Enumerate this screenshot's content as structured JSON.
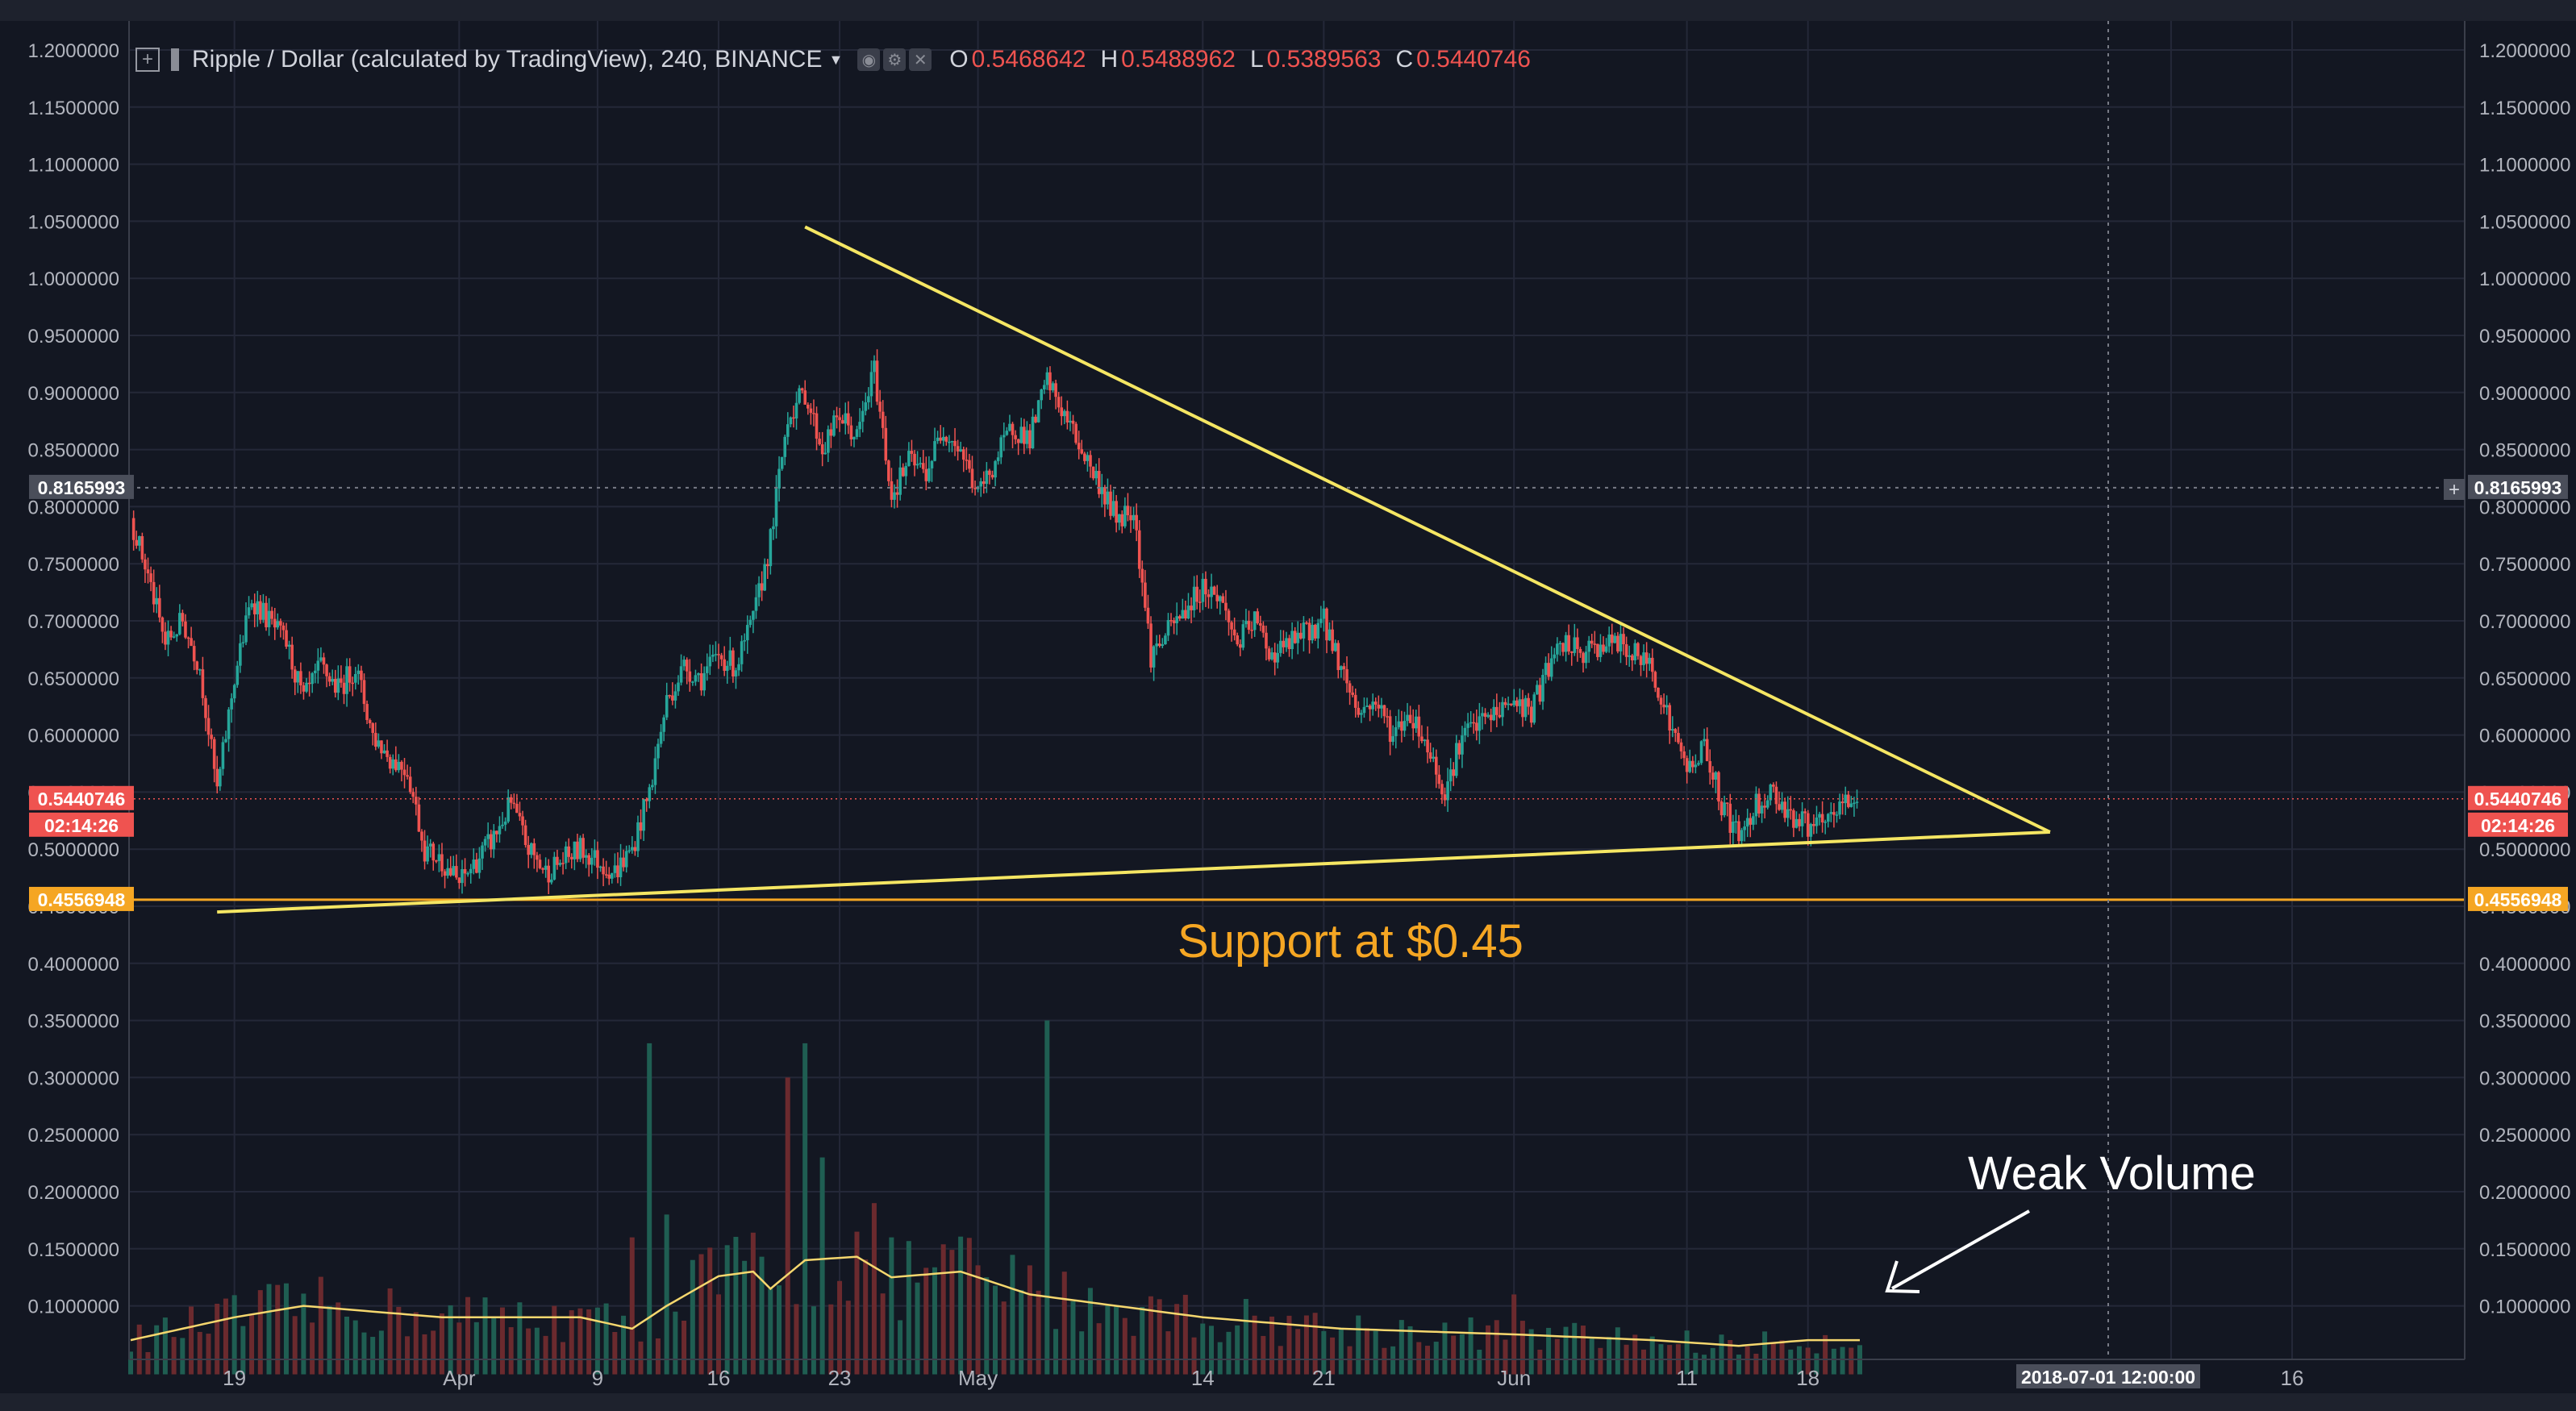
{
  "legend": {
    "title": "Ripple / Dollar (calculated by TradingView), 240, BINANCE",
    "o_label": "O",
    "o_value": "0.5468642",
    "h_label": "H",
    "h_value": "0.5488962",
    "l_label": "L",
    "l_value": "0.5389563",
    "c_label": "C",
    "c_value": "0.5440746"
  },
  "annotations": {
    "support": "Support at $0.45",
    "weak_volume": "Weak Volume"
  },
  "colors": {
    "background": "#131722",
    "grid": "#242838",
    "up": "#26a69a",
    "down": "#ef5350",
    "trendline": "#f5e663",
    "support": "#f5a623",
    "volume_ma": "#f5d76e"
  },
  "chart_data": {
    "type": "candlestick",
    "symbol": "Ripple / Dollar (calculated by TradingView), 240, BINANCE",
    "y_range": [
      0.04,
      1.22
    ],
    "y_ticks": [
      "1.2000000",
      "1.1500000",
      "1.1000000",
      "1.0500000",
      "1.0000000",
      "0.9500000",
      "0.9000000",
      "0.8500000",
      "0.8000000",
      "0.7500000",
      "0.7000000",
      "0.6500000",
      "0.6000000",
      "0.5500000",
      "0.5000000",
      "0.4500000",
      "0.4000000",
      "0.3500000",
      "0.3000000",
      "0.2500000",
      "0.2000000",
      "0.1500000",
      "0.1000000"
    ],
    "y_tick_values": [
      1.2,
      1.15,
      1.1,
      1.05,
      1.0,
      0.95,
      0.9,
      0.85,
      0.8,
      0.75,
      0.7,
      0.65,
      0.6,
      0.55,
      0.5,
      0.45,
      0.4,
      0.35,
      0.3,
      0.25,
      0.2,
      0.15,
      0.1
    ],
    "x_range_days": [
      0,
      112
    ],
    "x_ticks": [
      {
        "label": "19",
        "day": 6
      },
      {
        "label": "Apr",
        "day": 19
      },
      {
        "label": "9",
        "day": 27
      },
      {
        "label": "16",
        "day": 34
      },
      {
        "label": "23",
        "day": 41
      },
      {
        "label": "May",
        "day": 49
      },
      {
        "label": "14",
        "day": 62
      },
      {
        "label": "21",
        "day": 69
      },
      {
        "label": "Jun",
        "day": 80
      },
      {
        "label": "11",
        "day": 90
      },
      {
        "label": "18",
        "day": 97
      },
      {
        "label": "9",
        "day": 118
      },
      {
        "label": "16",
        "day": 125
      }
    ],
    "price_anchors": [
      [
        0,
        0.79
      ],
      [
        1,
        0.74
      ],
      [
        2,
        0.68
      ],
      [
        3,
        0.7
      ],
      [
        4,
        0.66
      ],
      [
        5,
        0.55
      ],
      [
        6,
        0.65
      ],
      [
        7,
        0.72
      ],
      [
        8,
        0.7
      ],
      [
        9,
        0.68
      ],
      [
        10,
        0.63
      ],
      [
        11,
        0.66
      ],
      [
        12,
        0.64
      ],
      [
        13,
        0.66
      ],
      [
        14,
        0.6
      ],
      [
        15,
        0.58
      ],
      [
        16,
        0.57
      ],
      [
        17,
        0.5
      ],
      [
        18,
        0.49
      ],
      [
        19,
        0.47
      ],
      [
        20,
        0.49
      ],
      [
        21,
        0.51
      ],
      [
        22,
        0.54
      ],
      [
        23,
        0.5
      ],
      [
        24,
        0.48
      ],
      [
        25,
        0.49
      ],
      [
        26,
        0.5
      ],
      [
        27,
        0.49
      ],
      [
        28,
        0.48
      ],
      [
        29,
        0.5
      ],
      [
        30,
        0.55
      ],
      [
        31,
        0.63
      ],
      [
        32,
        0.66
      ],
      [
        33,
        0.65
      ],
      [
        34,
        0.67
      ],
      [
        35,
        0.66
      ],
      [
        36,
        0.7
      ],
      [
        37,
        0.77
      ],
      [
        38,
        0.88
      ],
      [
        39,
        0.9
      ],
      [
        40,
        0.85
      ],
      [
        41,
        0.88
      ],
      [
        42,
        0.86
      ],
      [
        43,
        0.92
      ],
      [
        44,
        0.81
      ],
      [
        45,
        0.84
      ],
      [
        46,
        0.83
      ],
      [
        47,
        0.87
      ],
      [
        48,
        0.85
      ],
      [
        49,
        0.81
      ],
      [
        50,
        0.84
      ],
      [
        51,
        0.87
      ],
      [
        52,
        0.86
      ],
      [
        53,
        0.91
      ],
      [
        54,
        0.88
      ],
      [
        55,
        0.85
      ],
      [
        56,
        0.82
      ],
      [
        57,
        0.79
      ],
      [
        58,
        0.8
      ],
      [
        59,
        0.67
      ],
      [
        60,
        0.69
      ],
      [
        61,
        0.71
      ],
      [
        62,
        0.73
      ],
      [
        63,
        0.72
      ],
      [
        64,
        0.68
      ],
      [
        65,
        0.7
      ],
      [
        66,
        0.67
      ],
      [
        67,
        0.68
      ],
      [
        68,
        0.69
      ],
      [
        69,
        0.7
      ],
      [
        70,
        0.66
      ],
      [
        71,
        0.62
      ],
      [
        72,
        0.63
      ],
      [
        73,
        0.6
      ],
      [
        74,
        0.62
      ],
      [
        75,
        0.59
      ],
      [
        76,
        0.55
      ],
      [
        77,
        0.6
      ],
      [
        78,
        0.61
      ],
      [
        79,
        0.62
      ],
      [
        80,
        0.63
      ],
      [
        81,
        0.62
      ],
      [
        82,
        0.66
      ],
      [
        83,
        0.68
      ],
      [
        84,
        0.67
      ],
      [
        85,
        0.68
      ],
      [
        86,
        0.68
      ],
      [
        87,
        0.67
      ],
      [
        88,
        0.66
      ],
      [
        89,
        0.61
      ],
      [
        90,
        0.57
      ],
      [
        91,
        0.59
      ],
      [
        92,
        0.54
      ],
      [
        93,
        0.51
      ],
      [
        94,
        0.54
      ],
      [
        95,
        0.55
      ],
      [
        96,
        0.53
      ],
      [
        97,
        0.52
      ],
      [
        98,
        0.52
      ],
      [
        99,
        0.54
      ],
      [
        100,
        0.544
      ]
    ],
    "volume_ma_anchors": [
      [
        0,
        0.07
      ],
      [
        6,
        0.09
      ],
      [
        10,
        0.1
      ],
      [
        18,
        0.09
      ],
      [
        26,
        0.09
      ],
      [
        29,
        0.08
      ],
      [
        31,
        0.1
      ],
      [
        34,
        0.126
      ],
      [
        36,
        0.13
      ],
      [
        37,
        0.115
      ],
      [
        39,
        0.14
      ],
      [
        42,
        0.143
      ],
      [
        44,
        0.125
      ],
      [
        48,
        0.13
      ],
      [
        52,
        0.11
      ],
      [
        57,
        0.1
      ],
      [
        62,
        0.09
      ],
      [
        70,
        0.08
      ],
      [
        80,
        0.075
      ],
      [
        88,
        0.07
      ],
      [
        93,
        0.065
      ],
      [
        97,
        0.07
      ],
      [
        100,
        0.07
      ]
    ],
    "volume_spikes": [
      {
        "day": 30,
        "value": 0.33
      },
      {
        "day": 31,
        "value": 0.18
      },
      {
        "day": 38,
        "value": 0.3
      },
      {
        "day": 39,
        "value": 0.33
      },
      {
        "day": 40,
        "value": 0.23
      },
      {
        "day": 43,
        "value": 0.19
      },
      {
        "day": 53,
        "value": 0.35
      },
      {
        "day": 29,
        "value": 0.16
      },
      {
        "day": 44,
        "value": 0.16
      },
      {
        "day": 80,
        "value": 0.11
      }
    ],
    "trendlines": [
      {
        "name": "descending resistance",
        "from": [
          39,
          1.045
        ],
        "to": [
          111,
          0.515
        ]
      },
      {
        "name": "rising support",
        "from": [
          5,
          0.445
        ],
        "to": [
          111,
          0.515
        ]
      }
    ],
    "horizontal_lines": [
      {
        "value": 0.4556948,
        "label": "0.4556948",
        "color": "#f5a623"
      },
      {
        "value": 0.8165993,
        "label": "0.8165993",
        "color": "#787b86",
        "dashed": true
      }
    ],
    "price_labels": {
      "last": "0.5440746",
      "countdown": "02:14:26",
      "crosshair_time": "2018-07-01 12:00:00"
    }
  }
}
